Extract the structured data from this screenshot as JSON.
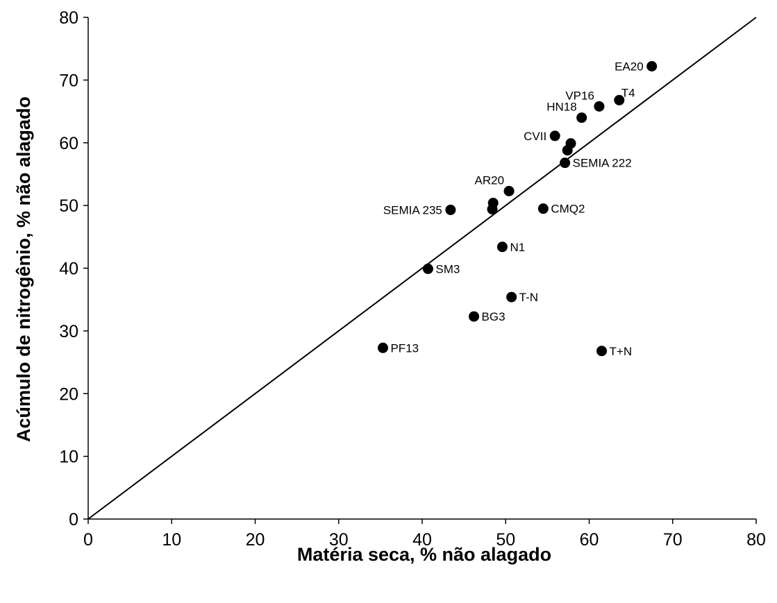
{
  "chart_data": {
    "type": "scatter",
    "title": "",
    "xlabel": "Matéria seca, % não alagado",
    "ylabel": "Acúmulo de nitrogênio, % não alagado",
    "xlim": [
      0,
      80
    ],
    "ylim": [
      0,
      80
    ],
    "xticks": [
      0,
      10,
      20,
      30,
      40,
      50,
      60,
      70,
      80
    ],
    "yticks": [
      0,
      10,
      20,
      30,
      40,
      50,
      60,
      70,
      80
    ],
    "grid": false,
    "legend": "none",
    "marker_color": "#000000",
    "reference_line": {
      "label": "1:1",
      "from": [
        0,
        0
      ],
      "to": [
        80,
        80
      ]
    },
    "points": [
      {
        "label": "EA20",
        "x": 67.5,
        "y": 72.2,
        "anchor": "left"
      },
      {
        "label": "T4",
        "x": 63.6,
        "y": 66.8,
        "anchor": "upright"
      },
      {
        "label": "VP16",
        "x": 61.2,
        "y": 65.8,
        "anchor": "upleft"
      },
      {
        "label": "HN18",
        "x": 59.1,
        "y": 64.0,
        "anchor": "upleft"
      },
      {
        "label": "CVII",
        "x": 55.9,
        "y": 61.1,
        "anchor": "left"
      },
      {
        "label": "",
        "x": 57.8,
        "y": 59.9,
        "anchor": "none"
      },
      {
        "label": "",
        "x": 57.4,
        "y": 58.8,
        "anchor": "none"
      },
      {
        "label": "SEMIA 222",
        "x": 57.1,
        "y": 56.8,
        "anchor": "right"
      },
      {
        "label": "AR20",
        "x": 50.4,
        "y": 52.3,
        "anchor": "upleft"
      },
      {
        "label": "",
        "x": 48.5,
        "y": 50.4,
        "anchor": "none"
      },
      {
        "label": "",
        "x": 48.4,
        "y": 49.4,
        "anchor": "none"
      },
      {
        "label": "SEMIA 235",
        "x": 43.4,
        "y": 49.3,
        "anchor": "left"
      },
      {
        "label": "CMQ2",
        "x": 54.5,
        "y": 49.5,
        "anchor": "right"
      },
      {
        "label": "N1",
        "x": 49.6,
        "y": 43.4,
        "anchor": "right"
      },
      {
        "label": "SM3",
        "x": 40.7,
        "y": 39.9,
        "anchor": "right"
      },
      {
        "label": "T-N",
        "x": 50.7,
        "y": 35.4,
        "anchor": "right"
      },
      {
        "label": "BG3",
        "x": 46.2,
        "y": 32.3,
        "anchor": "right"
      },
      {
        "label": "PF13",
        "x": 35.3,
        "y": 27.3,
        "anchor": "right"
      },
      {
        "label": "T+N",
        "x": 61.5,
        "y": 26.8,
        "anchor": "right"
      }
    ]
  }
}
